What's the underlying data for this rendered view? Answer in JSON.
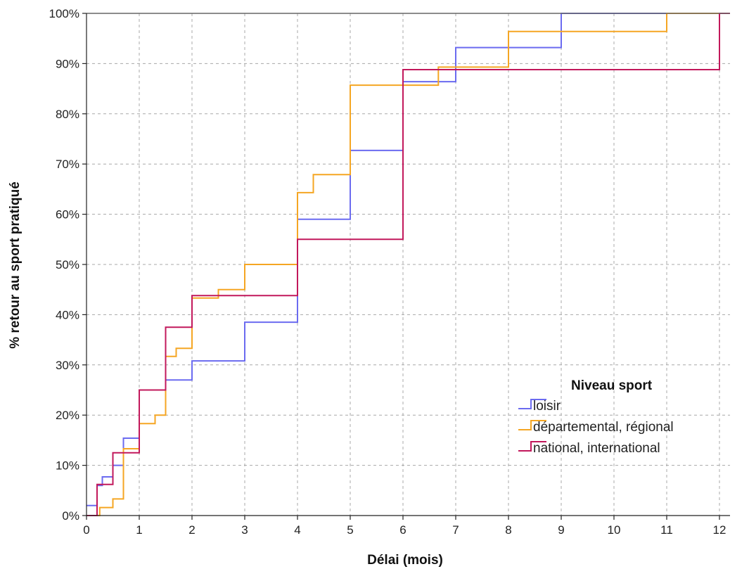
{
  "chart_data": {
    "type": "line",
    "step": true,
    "xlabel": "Délai (mois)",
    "ylabel": "% retour au sport pratiqué",
    "xlim": [
      0,
      12.2
    ],
    "ylim": [
      0,
      100
    ],
    "x_ticks": [
      0,
      1,
      2,
      3,
      4,
      5,
      6,
      7,
      8,
      9,
      10,
      11,
      12
    ],
    "x_tick_labels": [
      "0",
      "1",
      "2",
      "3",
      "4",
      "5",
      "6",
      "7",
      "8",
      "9",
      "10",
      "11",
      "12"
    ],
    "y_ticks": [
      0,
      10,
      20,
      30,
      40,
      50,
      60,
      70,
      80,
      90,
      100
    ],
    "y_tick_labels": [
      "0%",
      "10%",
      "20%",
      "30%",
      "40%",
      "50%",
      "60%",
      "70%",
      "80%",
      "90%",
      "100%"
    ],
    "grid": true,
    "legend": {
      "title": "Niveau sport",
      "placement": "bottom-right"
    },
    "series": [
      {
        "name": "loisir",
        "color": "#6b6bf0",
        "points": [
          [
            0,
            2
          ],
          [
            0.2,
            2
          ],
          [
            0.2,
            6
          ],
          [
            0.3,
            6
          ],
          [
            0.3,
            7.7
          ],
          [
            0.5,
            7.7
          ],
          [
            0.5,
            10
          ],
          [
            0.7,
            10
          ],
          [
            0.7,
            15.4
          ],
          [
            1,
            15.4
          ],
          [
            1,
            25
          ],
          [
            1.5,
            25
          ],
          [
            1.5,
            27
          ],
          [
            2,
            27
          ],
          [
            2,
            30.8
          ],
          [
            3,
            30.8
          ],
          [
            3,
            38.5
          ],
          [
            4,
            38.5
          ],
          [
            4,
            59
          ],
          [
            5,
            59
          ],
          [
            5,
            72.7
          ],
          [
            6,
            72.7
          ],
          [
            6,
            86.4
          ],
          [
            7,
            86.4
          ],
          [
            7,
            93.2
          ],
          [
            9,
            93.2
          ],
          [
            9,
            100
          ],
          [
            12.2,
            100
          ]
        ]
      },
      {
        "name": "départemental, régional",
        "color": "#f5a623",
        "points": [
          [
            0,
            0
          ],
          [
            0.25,
            0
          ],
          [
            0.25,
            1.6
          ],
          [
            0.5,
            1.6
          ],
          [
            0.5,
            3.3
          ],
          [
            0.7,
            3.3
          ],
          [
            0.7,
            13.3
          ],
          [
            1,
            13.3
          ],
          [
            1,
            18.3
          ],
          [
            1.3,
            18.3
          ],
          [
            1.3,
            20
          ],
          [
            1.5,
            20
          ],
          [
            1.5,
            31.7
          ],
          [
            1.7,
            31.7
          ],
          [
            1.7,
            33.3
          ],
          [
            2,
            33.3
          ],
          [
            2,
            43.3
          ],
          [
            2.5,
            43.3
          ],
          [
            2.5,
            45
          ],
          [
            3,
            45
          ],
          [
            3,
            50
          ],
          [
            4,
            50
          ],
          [
            4,
            64.3
          ],
          [
            4.3,
            64.3
          ],
          [
            4.3,
            67.9
          ],
          [
            5,
            67.9
          ],
          [
            5,
            85.7
          ],
          [
            6.67,
            85.7
          ],
          [
            6.67,
            89.3
          ],
          [
            8,
            89.3
          ],
          [
            8,
            96.4
          ],
          [
            11,
            96.4
          ],
          [
            11,
            100
          ],
          [
            12.2,
            100
          ]
        ]
      },
      {
        "name": "national, international",
        "color": "#c2185b",
        "points": [
          [
            0,
            0
          ],
          [
            0.2,
            0
          ],
          [
            0.2,
            6.2
          ],
          [
            0.5,
            6.2
          ],
          [
            0.5,
            12.5
          ],
          [
            1,
            12.5
          ],
          [
            1,
            25
          ],
          [
            1.5,
            25
          ],
          [
            1.5,
            37.5
          ],
          [
            2,
            37.5
          ],
          [
            2,
            43.8
          ],
          [
            4,
            43.8
          ],
          [
            4,
            55
          ],
          [
            6,
            55
          ],
          [
            6,
            88.8
          ],
          [
            12,
            88.8
          ],
          [
            12,
            100
          ],
          [
            12.2,
            100
          ]
        ]
      }
    ]
  }
}
